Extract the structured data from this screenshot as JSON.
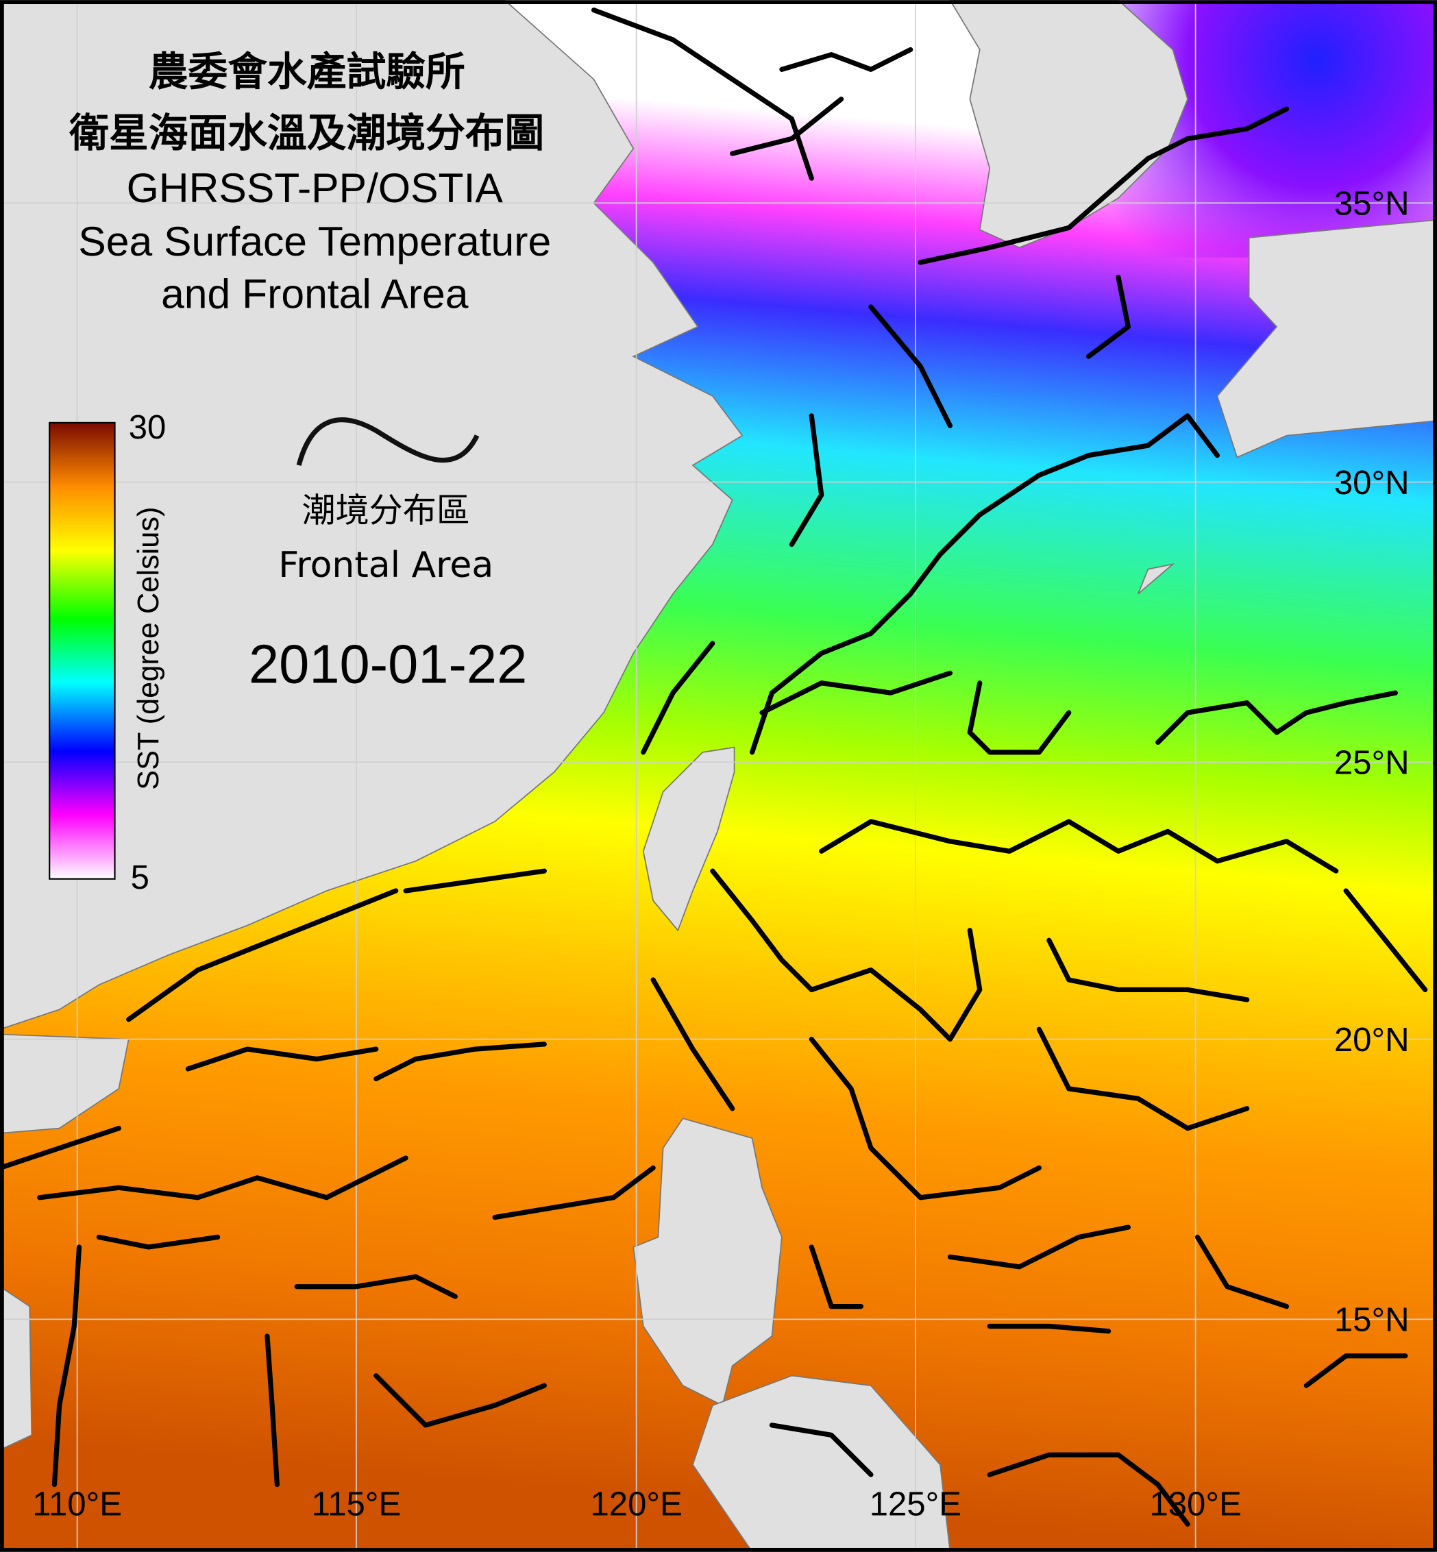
{
  "title": {
    "line1": "農委會水產試驗所",
    "line2": "衛星海面水溫及潮境分布圖",
    "line3": "GHRSST-PP/OSTIA",
    "line4": "Sea Surface Temperature",
    "line5": "and Frontal Area"
  },
  "colorbar": {
    "label": "SST (degree Celsius)",
    "max_label": "30",
    "min_label": "5",
    "range": [
      5,
      30
    ],
    "colors": [
      "#ffffff",
      "#ff00ff",
      "#0000ff",
      "#00ffff",
      "#00ff00",
      "#ffff00",
      "#ff8c00",
      "#7a0a00"
    ]
  },
  "legend": {
    "frontal_zh": "潮境分布區",
    "frontal_en": "Frontal Area"
  },
  "date": "2010-01-22",
  "latitude_labels": [
    "35°N",
    "30°N",
    "25°N",
    "20°N",
    "15°N"
  ],
  "longitude_labels": [
    "110°E",
    "115°E",
    "120°E",
    "125°E",
    "130°E"
  ],
  "colors": {
    "land": "#e0e0e0",
    "front_line": "#000000",
    "frame": "#000000"
  }
}
